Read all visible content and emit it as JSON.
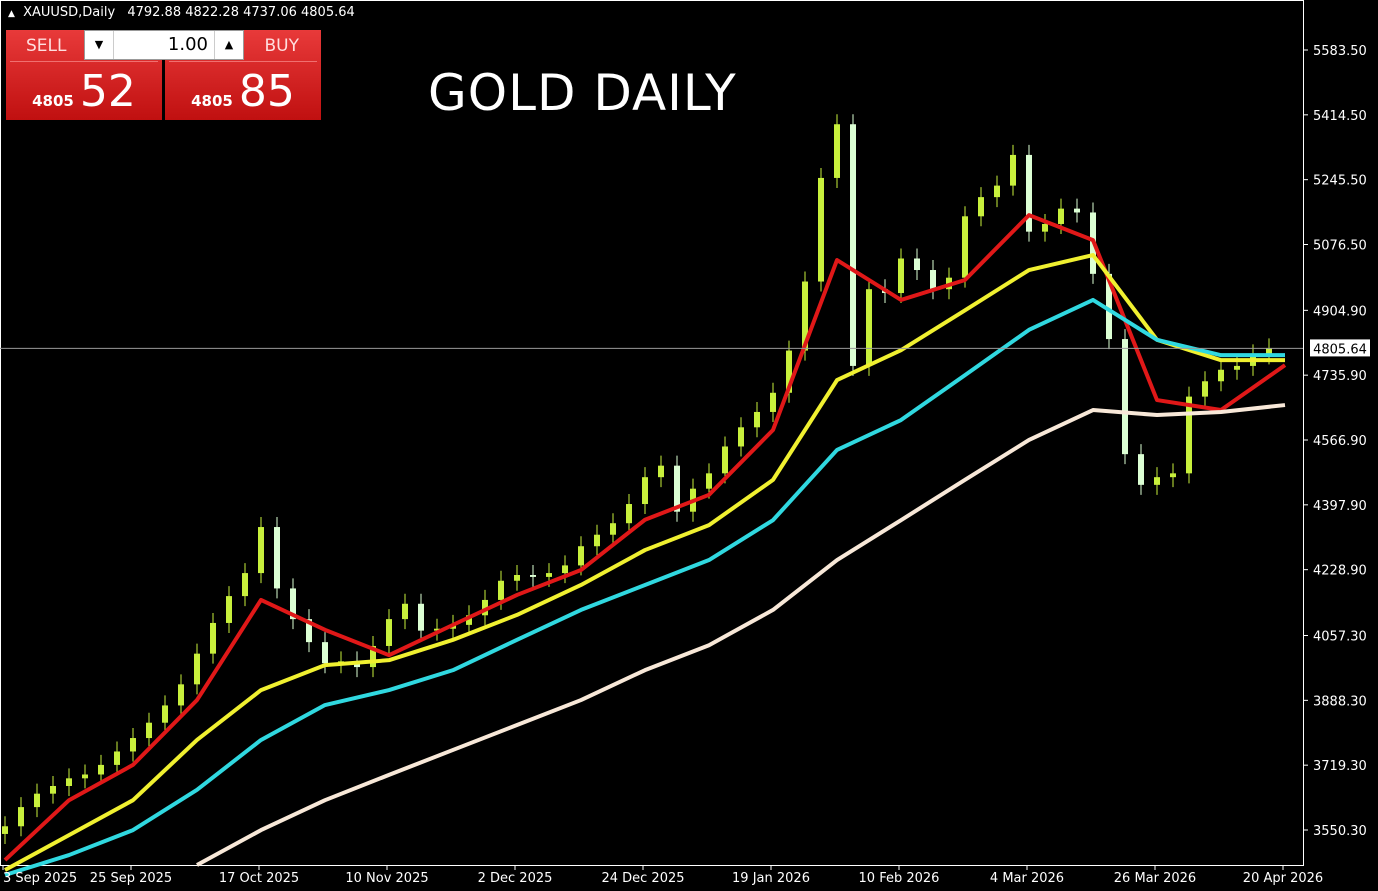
{
  "header": {
    "symbol": "XAUUSD,Daily",
    "ohlc": "4792.88 4822.28 4737.06 4805.64"
  },
  "trade_panel": {
    "sell_label": "SELL",
    "buy_label": "BUY",
    "lot": "1.00",
    "sell_big": "4805",
    "sell_small": "52",
    "buy_big": "4805",
    "buy_small": "85",
    "color": "#d42020"
  },
  "title": "GOLD DAILY",
  "chart_data": {
    "type": "candlestick",
    "ylim": [
      3550.3,
      5583.5
    ],
    "y_ticks": [
      "5583.50",
      "5414.50",
      "5245.50",
      "5076.50",
      "4904.90",
      "4735.90",
      "4566.90",
      "4397.90",
      "4228.90",
      "4057.30",
      "3888.30",
      "3719.30",
      "3550.30"
    ],
    "x_ticks": [
      "3 Sep 2025",
      "25 Sep 2025",
      "17 Oct 2025",
      "10 Nov 2025",
      "2 Dec 2025",
      "24 Dec 2025",
      "19 Jan 2026",
      "10 Feb 2026",
      "4 Mar 2026",
      "26 Mar 2026",
      "20 Apr 2026"
    ],
    "current_price": 4805.64,
    "current_price_label": "4805.64",
    "bull_color": "#c8f03c",
    "bear_color": "#dcffd4",
    "closes": [
      3560,
      3610,
      3645,
      3665,
      3685,
      3695,
      3720,
      3755,
      3790,
      3830,
      3875,
      3930,
      4010,
      4090,
      4160,
      4220,
      4340,
      4180,
      4100,
      4040,
      3985,
      3990,
      3975,
      4030,
      4100,
      4140,
      4070,
      4075,
      4085,
      4110,
      4150,
      4200,
      4215,
      4210,
      4220,
      4240,
      4290,
      4320,
      4350,
      4400,
      4470,
      4500,
      4380,
      4440,
      4480,
      4550,
      4600,
      4640,
      4690,
      4800,
      4980,
      5250,
      5390,
      4760,
      4960,
      4950,
      5040,
      5010,
      4960,
      4990,
      5150,
      5200,
      5230,
      5310,
      5110,
      5130,
      5170,
      5160,
      5000,
      4830,
      4530,
      4450,
      4470,
      4480,
      4680,
      4720,
      4750,
      4760,
      4790,
      4805.64
    ],
    "moving_averages": [
      {
        "color": "#e01818",
        "values": [
          3472,
          3628,
          3720,
          3889,
          4150,
          4072,
          4006,
          4085,
          4163,
          4228,
          4359,
          4424,
          4593,
          5036,
          4932,
          4984,
          5153,
          5088,
          4671,
          4645,
          4762
        ]
      },
      {
        "color": "#f0f030",
        "values": [
          3446,
          3537,
          3628,
          3785,
          3915,
          3980,
          3993,
          4046,
          4111,
          4189,
          4280,
          4345,
          4463,
          4723,
          4801,
          4905,
          5010,
          5049,
          4828,
          4775,
          4775
        ]
      },
      {
        "color": "#30d8e0",
        "values": [
          3433,
          3485,
          3550,
          3655,
          3785,
          3876,
          3915,
          3967,
          4046,
          4124,
          4189,
          4254,
          4358,
          4541,
          4619,
          4736,
          4854,
          4932,
          4828,
          4788,
          4788
        ]
      },
      {
        "color": "#f8e8d8",
        "values": [
          null,
          null,
          null,
          3459,
          3550,
          3628,
          3694,
          3759,
          3824,
          3889,
          3967,
          4032,
          4124,
          4254,
          4358,
          4463,
          4567,
          4645,
          4632,
          4640,
          4658
        ]
      }
    ]
  }
}
